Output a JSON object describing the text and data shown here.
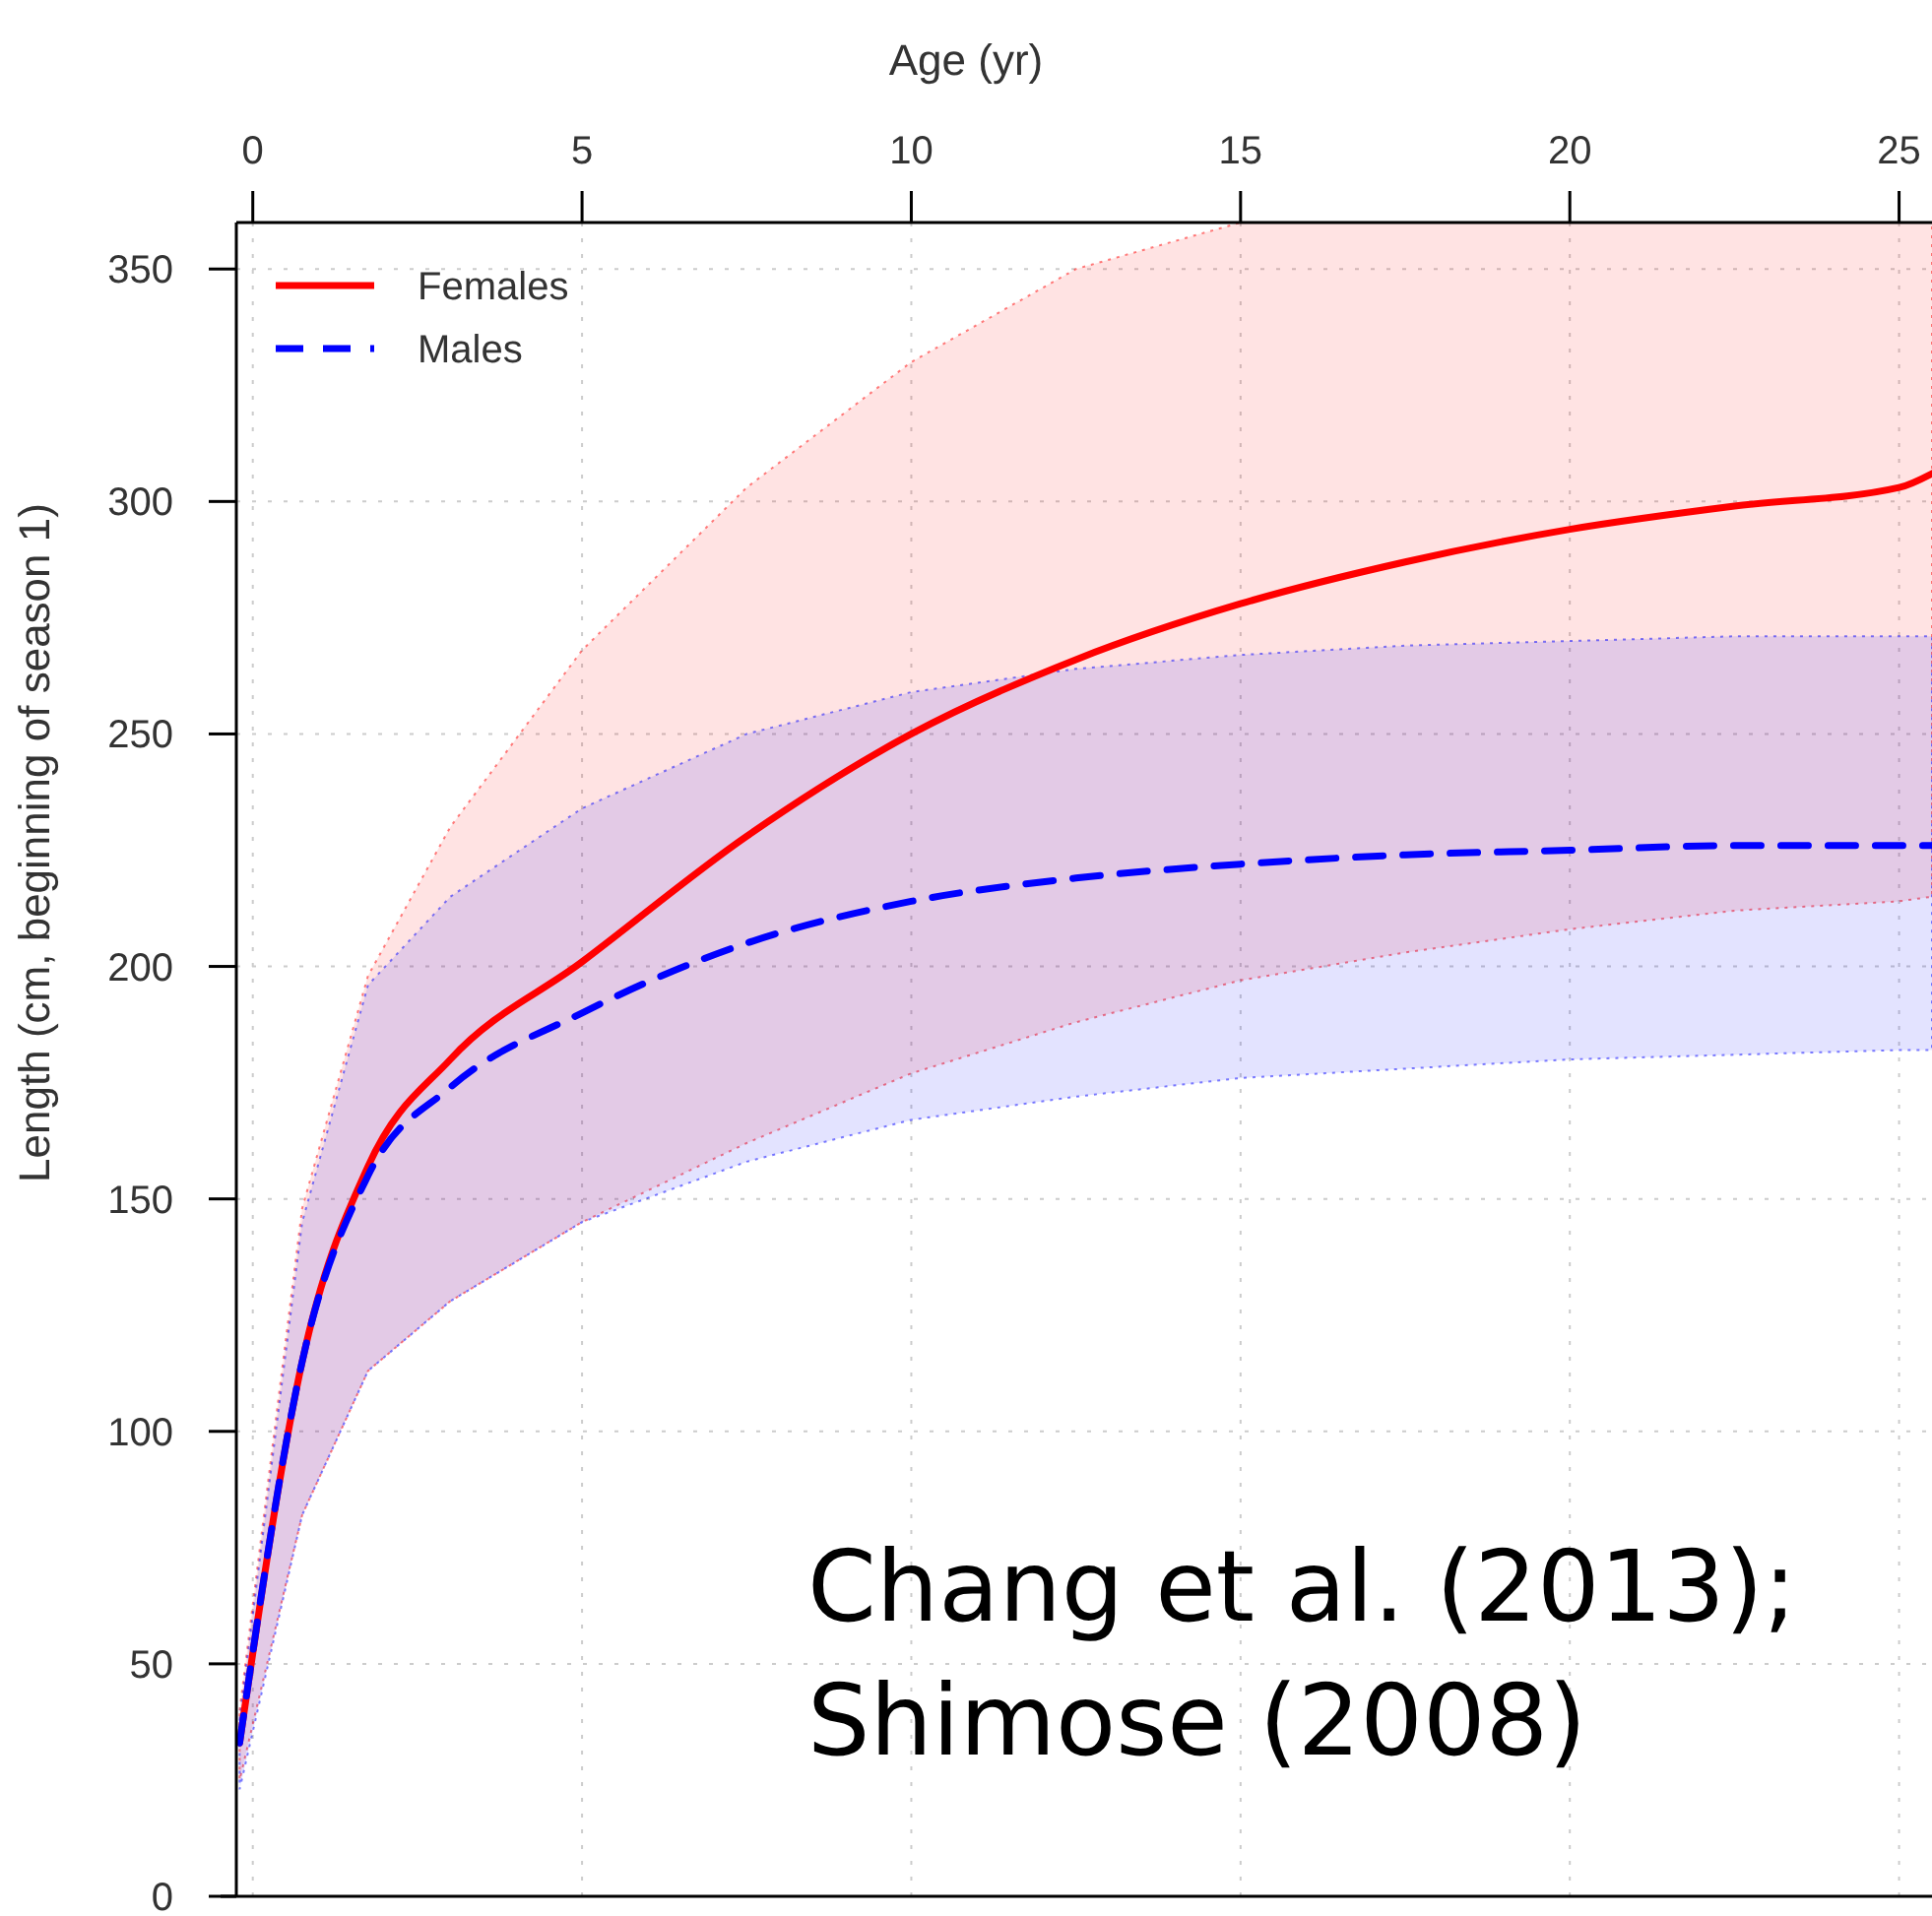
{
  "chart_data": {
    "type": "line",
    "xlabel": "Age (yr)",
    "ylabel": "Length (cm, beginning of season 1)",
    "x": [
      -0.2,
      0.75,
      1.75,
      3,
      5,
      7.5,
      10,
      12.5,
      15,
      17.5,
      20,
      22.5,
      25,
      25.5
    ],
    "series": [
      {
        "name": "Females",
        "color": "#ff0000",
        "line_style": "solid",
        "values": [
          33,
          115,
          157,
          180,
          201,
          228,
          250,
          266,
          278,
          287,
          294,
          299,
          303,
          306
        ],
        "lower": [
          25,
          82,
          113,
          128,
          145,
          162,
          177,
          188,
          197,
          203,
          208,
          212,
          214,
          215
        ],
        "upper": [
          40,
          148,
          198,
          230,
          268,
          303,
          330,
          350,
          360,
          360,
          360,
          360,
          360,
          360
        ]
      },
      {
        "name": "Males",
        "color": "#0000ff",
        "line_style": "dashed",
        "values": [
          33,
          115,
          155,
          174,
          190,
          205,
          214,
          219,
          222,
          224,
          225,
          226,
          226,
          226
        ],
        "lower": [
          23,
          82,
          113,
          128,
          145,
          158,
          167,
          172,
          176,
          178,
          180,
          181,
          182,
          182
        ],
        "upper": [
          38,
          145,
          196,
          215,
          234,
          250,
          259,
          264,
          267,
          269,
          270,
          271,
          271,
          271
        ]
      }
    ],
    "xlim": [
      -0.25,
      25.5
    ],
    "xticks": [
      0,
      5,
      10,
      15,
      20,
      25
    ],
    "ylim": [
      0,
      360
    ],
    "yticks": [
      0,
      50,
      100,
      150,
      200,
      250,
      300,
      350
    ],
    "grid": true,
    "legend": "top left",
    "annotations": [
      "Chang et al. (2013);\nShimose (2008)"
    ]
  }
}
